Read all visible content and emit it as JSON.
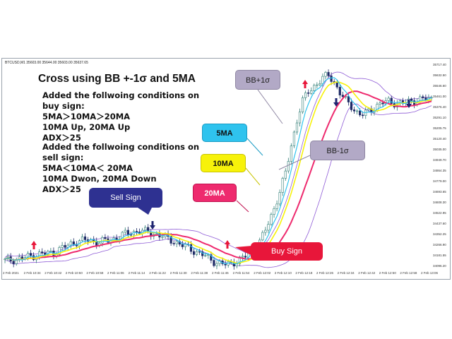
{
  "chart": {
    "symbol_info": "BTCUSD,M1  35603.00 35644.00 35603.00 35637.65",
    "price_labels": [
      "35717.40",
      "35632.50",
      "35546.60",
      "35461.00",
      "35376.40",
      "35291.10",
      "35205.75",
      "35120.40",
      "35035.00",
      "34949.70",
      "34864.35",
      "34779.00",
      "34693.65",
      "34608.30",
      "34522.95",
      "34437.60",
      "34352.25",
      "34266.90",
      "34181.55",
      "34096.20"
    ],
    "time_labels": [
      "2 Feb 2021",
      "2 Feb 10:34",
      "2 Feb 10:42",
      "2 Feb 10:50",
      "2 Feb 10:58",
      "2 Feb 11:06",
      "2 Feb 11:14",
      "2 Feb 11:22",
      "2 Feb 11:30",
      "2 Feb 11:38",
      "2 Feb 11:46",
      "2 Feb 11:54",
      "2 Feb 12:02",
      "2 Feb 12:10",
      "2 Feb 12:18",
      "2 Feb 12:26",
      "2 Feb 12:34",
      "2 Feb 12:42",
      "2 Feb 12:50",
      "2 Feb 12:58",
      "2 Feb 13:06"
    ]
  },
  "overlay": {
    "headline": "Cross using BB +-1σ and 5MA",
    "buy_conditions": "Added the follwoing conditions on\nbuy sign:\n5MA＞10MA＞20MA\n10MA Up, 20MA Up\nADX＞25",
    "sell_conditions": "Added the follwoing conditions on\nsell sign:\n5MA＜10MA＜ 20MA\n10MA Dwon, 20MA Down\nADX＞25"
  },
  "callouts": {
    "sell": "Sell Sign",
    "buy": "Buy Sign",
    "bb_plus": "BB+1σ",
    "bb_minus": "BB-1σ",
    "ma5": "5MA",
    "ma10": "10MA",
    "ma20": "20MA"
  },
  "colors": {
    "ma5": "#2fc3ee",
    "ma10": "#f7f20a",
    "ma20": "#ee2a6e",
    "bollinger": "#8e5bd6",
    "bull_candle": "#2f7c74",
    "bear_candle": "#1e2b66",
    "buy_arrow": "#e8163a",
    "sell_arrow": "#1e2470",
    "sell_callout": "#2e3191",
    "buy_callout": "#e8163a",
    "bb_callout": "#b2a9c6"
  },
  "chart_data": {
    "type": "candlestick",
    "price_range": [
      34096.2,
      35717.4
    ],
    "close_profile": [
      34140,
      34145,
      34152,
      34160,
      34170,
      34178,
      34190,
      34195,
      34200,
      34205,
      34230,
      34250,
      34270,
      34290,
      34300,
      34305,
      34300,
      34290,
      34295,
      34300,
      34310,
      34330,
      34350,
      34360,
      34370,
      34380,
      34370,
      34360,
      34350,
      34340,
      34320,
      34300,
      34280,
      34260,
      34240,
      34220,
      34200,
      34180,
      34150,
      34130,
      34115,
      34110,
      34120,
      34140,
      34160,
      34190,
      34230,
      34280,
      34360,
      34460,
      34580,
      34700,
      34850,
      35050,
      35250,
      35400,
      35480,
      35520,
      35560,
      35600,
      35620,
      35560,
      35480,
      35420,
      35380,
      35330,
      35300,
      35320,
      35350,
      35380,
      35400,
      35410,
      35400,
      35395,
      35400,
      35410,
      35420,
      35425,
      35430,
      35430
    ]
  }
}
